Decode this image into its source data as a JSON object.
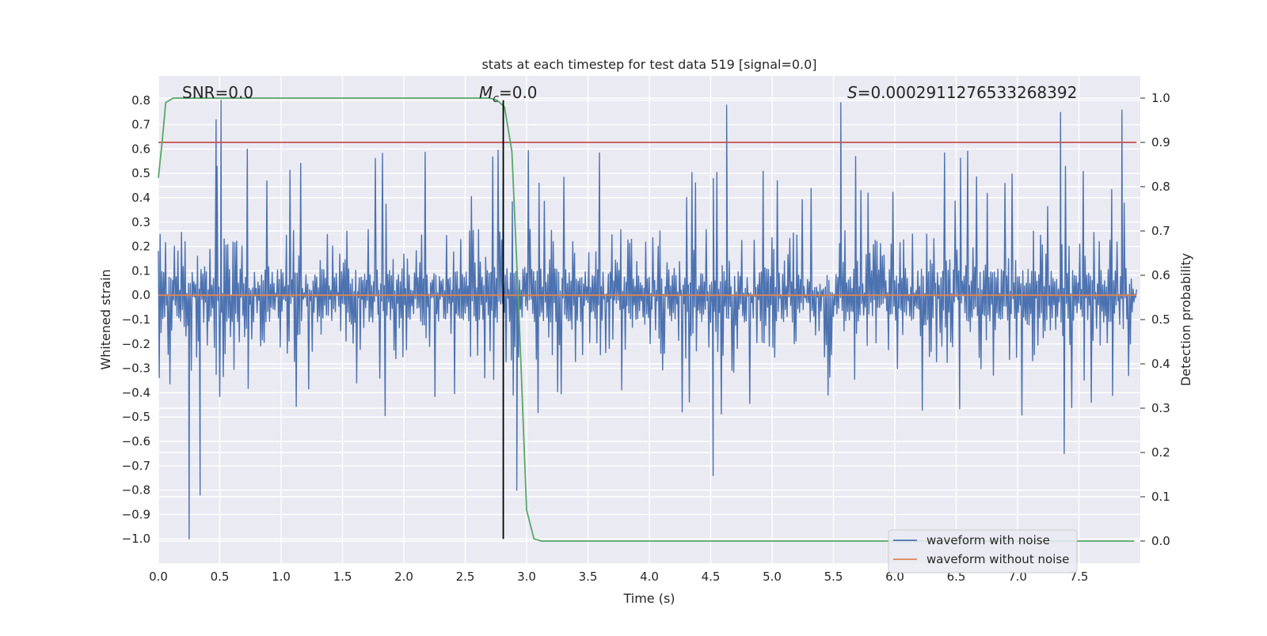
{
  "chart_data": {
    "type": "line",
    "title": "stats at each timestep for test data 519 [signal=0.0]",
    "xlabel": "Time (s)",
    "ylabel_left": "Whitened strain",
    "ylabel_right": "Detection probability",
    "xlim": [
      0.0,
      8.0
    ],
    "ylim_left": [
      -1.1,
      0.9
    ],
    "ylim_right": [
      -0.05,
      1.05
    ],
    "x_ticks": [
      "0.0",
      "0.5",
      "1.0",
      "1.5",
      "2.0",
      "2.5",
      "3.0",
      "3.5",
      "4.0",
      "4.5",
      "5.0",
      "5.5",
      "6.0",
      "6.5",
      "7.0",
      "7.5"
    ],
    "y_ticks_left": [
      "0.8",
      "0.7",
      "0.6",
      "0.5",
      "0.4",
      "0.3",
      "0.2",
      "0.1",
      "0.0",
      "−0.1",
      "−0.2",
      "−0.3",
      "−0.4",
      "−0.5",
      "−0.6",
      "−0.7",
      "−0.8",
      "−0.9",
      "−1.0"
    ],
    "y_ticks_right": [
      "1.0",
      "0.9",
      "0.8",
      "0.7",
      "0.6",
      "0.5",
      "0.4",
      "0.3",
      "0.2",
      "0.1",
      "0.0"
    ],
    "grid": true,
    "legend_position": "lower-right",
    "annotations": {
      "snr": "SNR=0.0",
      "mc_symbol": "M",
      "mc_sub": "c",
      "mc_value": "=0.0",
      "s_symbol": "S",
      "s_value": "=0.0002911276533268392"
    },
    "series": [
      {
        "name": "waveform with noise",
        "color": "#4c72b0",
        "axis": "left",
        "noise_envelope": {
          "x_range": [
            0.0,
            7.97
          ],
          "dense_band": [
            -0.28,
            0.27
          ],
          "typical_peak_range": [
            -0.5,
            0.6
          ],
          "extremes": [
            {
              "x": 0.25,
              "y": -1.0
            },
            {
              "x": 0.34,
              "y": -0.82
            },
            {
              "x": 0.51,
              "y": 0.8
            },
            {
              "x": 0.47,
              "y": 0.72
            },
            {
              "x": 2.81,
              "y": 0.47
            },
            {
              "x": 2.92,
              "y": -0.8
            },
            {
              "x": 4.63,
              "y": 0.78
            },
            {
              "x": 5.56,
              "y": 0.79
            },
            {
              "x": 7.35,
              "y": 0.75
            },
            {
              "x": 7.85,
              "y": 0.76
            },
            {
              "x": 4.52,
              "y": -0.74
            },
            {
              "x": 7.38,
              "y": -0.65
            }
          ]
        }
      },
      {
        "name": "waveform without noise",
        "color": "#dd8452",
        "axis": "left",
        "x": [
          0.0,
          7.97
        ],
        "y": [
          0.0,
          0.0
        ]
      },
      {
        "color": "#55a868",
        "axis": "right",
        "x": [
          0.0,
          0.03,
          0.06,
          0.12,
          0.5,
          1.0,
          1.5,
          2.0,
          2.5,
          2.6,
          2.7,
          2.76,
          2.82,
          2.88,
          2.94,
          3.0,
          3.06,
          3.12,
          3.5,
          4.0,
          5.0,
          6.0,
          7.0,
          7.95
        ],
        "y": [
          0.82,
          0.9,
          0.99,
          1.0,
          1.0,
          1.0,
          1.0,
          1.0,
          1.0,
          1.0,
          1.0,
          0.995,
          0.98,
          0.88,
          0.5,
          0.07,
          0.005,
          0.0,
          0.0,
          0.0,
          0.0,
          0.0,
          0.0,
          0.0
        ]
      },
      {
        "color": "#c44e52",
        "axis": "right",
        "x": [
          0.0,
          7.97
        ],
        "y": [
          0.9,
          0.9
        ]
      }
    ],
    "vertical_marker": {
      "x": 2.81,
      "y_range": [
        -1.0,
        0.8
      ],
      "color": "#000000"
    }
  }
}
